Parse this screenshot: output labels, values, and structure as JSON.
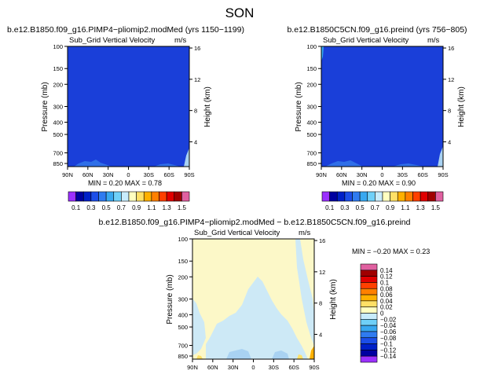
{
  "page_title": "SON",
  "chart_data": [
    {
      "type": "heatmap",
      "title": "b.e12.B1850.f09_g16.PIMP4−pliomip2.modMed (yrs 1150−1199)",
      "field": "Sub_Grid Vertical Velocity",
      "units": "m/s",
      "ylabel": "Pressure (mb)",
      "ylabel_right": "Height (km)",
      "x_ticks": [
        "90N",
        "60N",
        "30N",
        "0",
        "30S",
        "60S",
        "90S"
      ],
      "y_ticks": [
        100,
        150,
        200,
        300,
        400,
        500,
        700,
        850
      ],
      "y_ticks_right": [
        16,
        12,
        8,
        4
      ],
      "y_log": true,
      "stats_text": "MIN =    0.20   MAX =    0.78",
      "min": 0.2,
      "max": 0.78,
      "note": "field nearly uniform near 0.2; small higher values near 90S surface"
    },
    {
      "type": "heatmap",
      "title": "b.e12.B1850C5CN.f09_g16.preind (yrs 756−805)",
      "field": "Sub_Grid Vertical Velocity",
      "units": "m/s",
      "ylabel": "Pressure (mb)",
      "ylabel_right": "Height (km)",
      "x_ticks": [
        "90N",
        "60N",
        "30N",
        "0",
        "30S",
        "60S",
        "90S"
      ],
      "y_ticks": [
        100,
        150,
        200,
        300,
        400,
        500,
        700,
        850
      ],
      "y_ticks_right": [
        16,
        12,
        8,
        4
      ],
      "y_log": true,
      "stats_text": "MIN =    0.20   MAX =    0.90",
      "min": 0.2,
      "max": 0.9
    },
    {
      "type": "heatmap",
      "title": "b.e12.B1850.f09_g16.PIMP4−pliomip2.modMed − b.e12.B1850C5CN.f09_g16.preind",
      "field": "Sub_Grid Vertical Velocity",
      "units": "m/s",
      "ylabel": "Pressure (mb)",
      "ylabel_right": "Height (km)",
      "x_ticks": [
        "90N",
        "60N",
        "30N",
        "0",
        "30S",
        "60S",
        "90S"
      ],
      "y_ticks": [
        100,
        150,
        200,
        300,
        400,
        500,
        700,
        850
      ],
      "y_ticks_right": [
        16,
        12,
        8,
        4
      ],
      "y_log": true,
      "stats_text": "MIN =   −0.20   MAX =    0.23",
      "min": -0.2,
      "max": 0.23
    }
  ],
  "colorbar_top": {
    "labels": [
      "0.1",
      "0.3",
      "0.5",
      "0.7",
      "0.9",
      "1.1",
      "1.3",
      "1.5"
    ],
    "colors": [
      "#9b30ff",
      "#0000a0",
      "#0020c8",
      "#1c4ee8",
      "#2f7bf0",
      "#38a8f0",
      "#6fd0f8",
      "#c8ecfc",
      "#ffffc0",
      "#ffe066",
      "#ffb000",
      "#ff8000",
      "#ff4000",
      "#e00000",
      "#a00000",
      "#e060a0"
    ]
  },
  "colorbar_diff": {
    "labels": [
      "0.14",
      "0.12",
      "0.1",
      "0.08",
      "0.06",
      "0.04",
      "0.02",
      "0",
      "−0.02",
      "−0.04",
      "−0.06",
      "−0.08",
      "−0.1",
      "−0.12",
      "−0.14"
    ],
    "colors": [
      "#e060a0",
      "#a00000",
      "#e00000",
      "#ff4000",
      "#ff8000",
      "#ffb000",
      "#ffe066",
      "#ffffc0",
      "#c8ecfc",
      "#6fd0f8",
      "#38a8f0",
      "#2f7bf0",
      "#1c4ee8",
      "#0020c8",
      "#0000a0",
      "#9b30ff"
    ]
  },
  "colors": {
    "field_fill": "#1a3fd9",
    "diff_fill": "#fcf8c8",
    "diff_negative": "#cde9f6",
    "diff_negative_strong": "#a9d2f2"
  }
}
